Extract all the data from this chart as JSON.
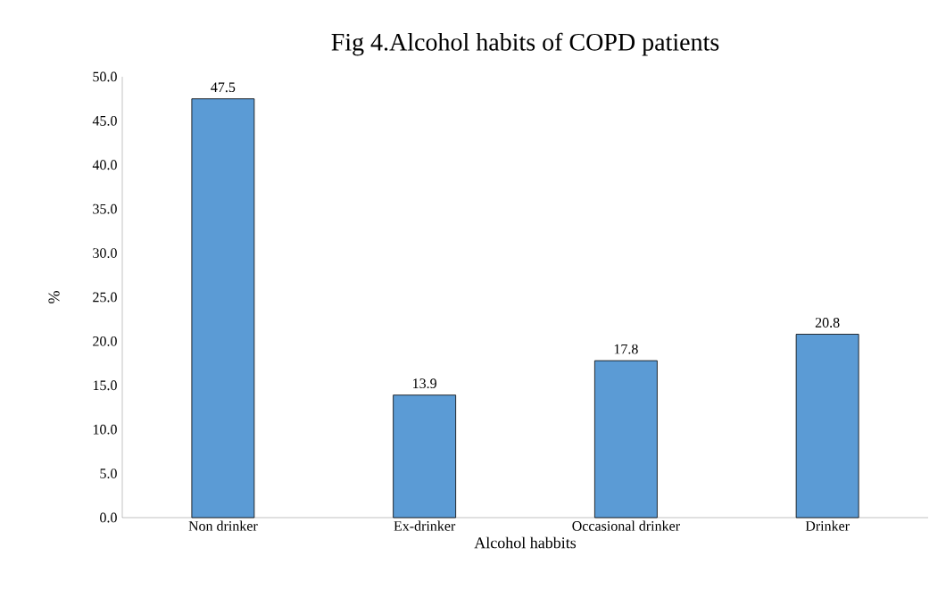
{
  "chart_data": {
    "type": "bar",
    "title": "Fig 4.Alcohol habits of COPD patients",
    "xlabel": "Alcohol habbits",
    "ylabel": "%",
    "categories": [
      "Non drinker",
      "Ex-drinker",
      "Occasional drinker",
      "Drinker"
    ],
    "values": [
      47.5,
      13.9,
      17.8,
      20.8
    ],
    "color": "#5b9bd5",
    "data_labels": true,
    "grid": false,
    "ylim": [
      0,
      50
    ],
    "yticks": [
      {
        "value": 0,
        "label": "0.0"
      },
      {
        "value": 5,
        "label": "5.0"
      },
      {
        "value": 10,
        "label": "10.0"
      },
      {
        "value": 15,
        "label": "15.0"
      },
      {
        "value": 20,
        "label": "20.0"
      },
      {
        "value": 25,
        "label": "25.0"
      },
      {
        "value": 30,
        "label": "30.0"
      },
      {
        "value": 35,
        "label": "35.0"
      },
      {
        "value": 40,
        "label": "40.0"
      },
      {
        "value": 45,
        "label": "45.0"
      },
      {
        "value": 50,
        "label": "50.0"
      }
    ]
  }
}
